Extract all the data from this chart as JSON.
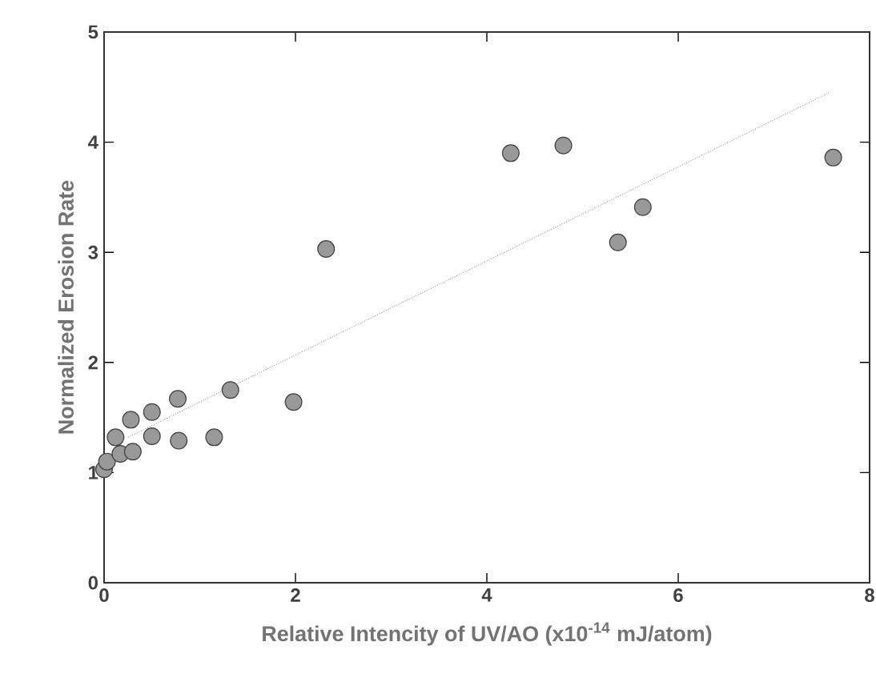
{
  "chart_data": {
    "type": "scatter",
    "xlabel": "Relative Intencity of UV/AO (x10$^{-14}$ mJ/atom)",
    "ylabel": "Normalized Erosion Rate",
    "xlim": [
      0,
      8
    ],
    "ylim": [
      0,
      5
    ],
    "xticks": [
      0,
      2,
      4,
      6,
      8
    ],
    "yticks": [
      0,
      1,
      2,
      3,
      4,
      5
    ],
    "grid": false,
    "series": [
      {
        "color": "#999999",
        "marker": "circle",
        "x": [
          0.0,
          0.03,
          0.17,
          0.3,
          0.12,
          0.5,
          0.78,
          1.15,
          0.28,
          0.5,
          0.77,
          1.32,
          1.98,
          2.32,
          4.25,
          4.8,
          5.37,
          5.63,
          7.62
        ],
        "values": [
          1.03,
          1.1,
          1.17,
          1.19,
          1.32,
          1.33,
          1.29,
          1.32,
          1.48,
          1.55,
          1.67,
          1.75,
          1.64,
          3.03,
          3.9,
          3.97,
          3.09,
          3.41,
          3.86
        ]
      },
      {
        "type": "line",
        "color": "#777777",
        "line_style": "dotted",
        "marker": "none",
        "x": [
          0.25,
          7.58
        ],
        "values": [
          1.32,
          4.45
        ]
      }
    ]
  }
}
